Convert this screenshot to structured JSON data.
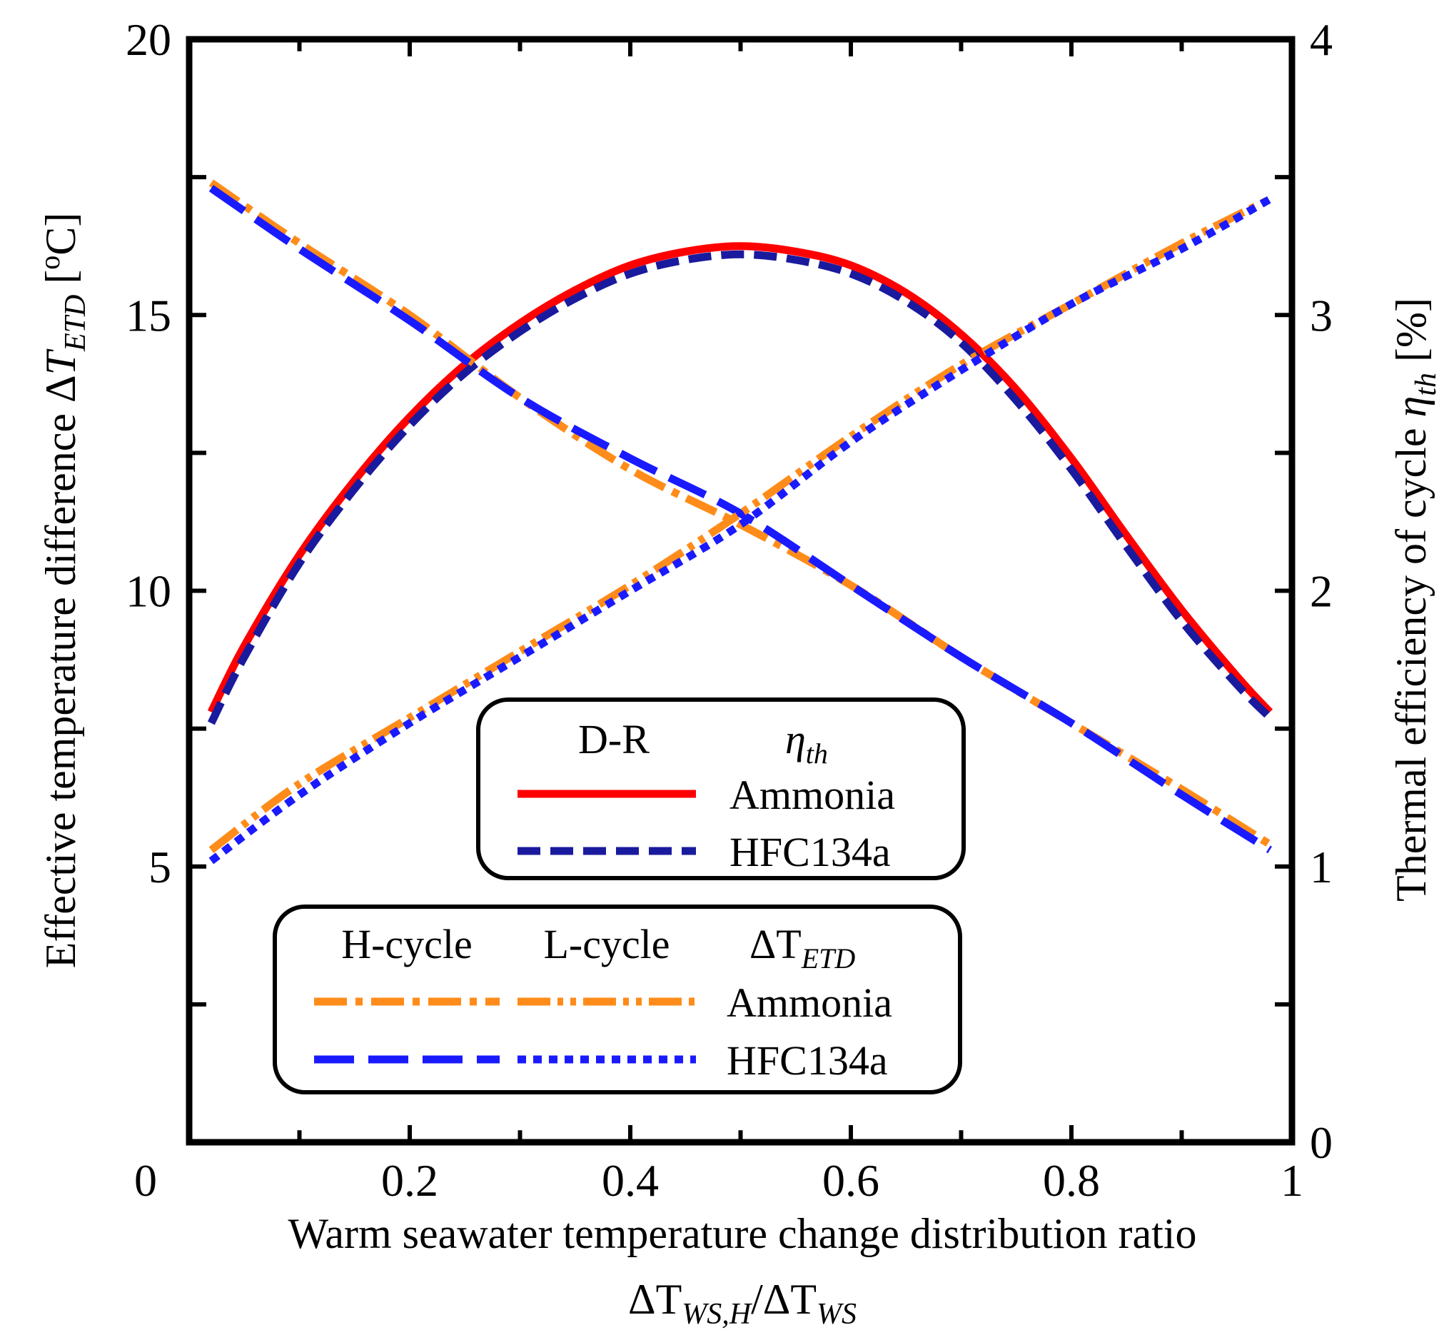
{
  "chart_data": {
    "type": "line",
    "xlabel": "Warm seawater temperature change distribution ratio",
    "xlabel_sub": {
      "prefix": "ΔT",
      "sub1": "WS,H",
      "slash": "/ΔT",
      "sub2": "WS"
    },
    "ylabel": {
      "text": "Effective temperature difference ",
      "delta": "Δ",
      "var": "T",
      "sub": "ETD",
      "bracket_open": " [",
      "sup": "o",
      "unit": "C]"
    },
    "y2label": {
      "text": "Thermal efficiency of cycle ",
      "var": "η",
      "sub": "th",
      "unit": " [%]"
    },
    "xlim": [
      0,
      1
    ],
    "ylim": [
      0,
      20
    ],
    "y2lim": [
      0,
      4
    ],
    "xticks": [
      0,
      0.2,
      0.4,
      0.6,
      0.8,
      1
    ],
    "xtick_labels": [
      "0",
      "0.2",
      "0.4",
      "0.6",
      "0.8",
      "1"
    ],
    "yticks": [
      5,
      10,
      15,
      20
    ],
    "ytick_labels": [
      "5",
      "10",
      "15",
      "20"
    ],
    "y2ticks": [
      0,
      1,
      2,
      3,
      4
    ],
    "y2tick_labels": [
      "0",
      "1",
      "2",
      "3",
      "4"
    ],
    "x0_label": "0",
    "colors": {
      "red": "#ff0000",
      "navy": "#1a1a9e",
      "orange": "#ff8c1a",
      "blue": "#1a1aff"
    },
    "series": [
      {
        "name": "eta_th Ammonia D-R",
        "axis": "y2",
        "color": "#ff0000",
        "dash": "solid",
        "x": [
          0.02,
          0.05,
          0.1,
          0.15,
          0.2,
          0.25,
          0.3,
          0.35,
          0.4,
          0.45,
          0.5,
          0.55,
          0.6,
          0.65,
          0.7,
          0.75,
          0.8,
          0.85,
          0.9,
          0.95,
          0.98
        ],
        "y": [
          1.56,
          1.8,
          2.13,
          2.4,
          2.63,
          2.82,
          2.97,
          3.09,
          3.18,
          3.23,
          3.25,
          3.23,
          3.18,
          3.08,
          2.93,
          2.73,
          2.48,
          2.2,
          1.93,
          1.69,
          1.56
        ]
      },
      {
        "name": "eta_th HFC134a D-R",
        "axis": "y2",
        "color": "#1a1a9e",
        "dash": "dashed",
        "x": [
          0.02,
          0.05,
          0.1,
          0.15,
          0.2,
          0.25,
          0.3,
          0.35,
          0.4,
          0.45,
          0.5,
          0.55,
          0.6,
          0.65,
          0.7,
          0.75,
          0.8,
          0.85,
          0.9,
          0.95,
          0.98
        ],
        "y": [
          1.52,
          1.76,
          2.1,
          2.37,
          2.6,
          2.79,
          2.94,
          3.06,
          3.15,
          3.2,
          3.22,
          3.2,
          3.15,
          3.05,
          2.9,
          2.69,
          2.44,
          2.16,
          1.89,
          1.66,
          1.54
        ]
      },
      {
        "name": "DT_ETD H-cycle Ammonia",
        "axis": "y",
        "color": "#ff8c1a",
        "dash": "dashdot",
        "x": [
          0.02,
          0.1,
          0.2,
          0.3,
          0.4,
          0.5,
          0.6,
          0.7,
          0.8,
          0.9,
          0.98
        ],
        "y": [
          17.4,
          16.3,
          15.0,
          13.5,
          12.2,
          11.2,
          10.1,
          8.8,
          7.6,
          6.4,
          5.4
        ]
      },
      {
        "name": "DT_ETD H-cycle HFC134a",
        "axis": "y",
        "color": "#1a1aff",
        "dash": "longdash",
        "x": [
          0.02,
          0.1,
          0.2,
          0.3,
          0.4,
          0.5,
          0.6,
          0.7,
          0.8,
          0.9,
          0.98
        ],
        "y": [
          17.3,
          16.2,
          14.9,
          13.5,
          12.4,
          11.4,
          10.1,
          8.8,
          7.6,
          6.3,
          5.3
        ]
      },
      {
        "name": "DT_ETD L-cycle Ammonia",
        "axis": "y",
        "color": "#ff8c1a",
        "dash": "dashdotdot",
        "x": [
          0.02,
          0.1,
          0.2,
          0.3,
          0.4,
          0.5,
          0.6,
          0.7,
          0.8,
          0.9,
          0.98
        ],
        "y": [
          5.3,
          6.5,
          7.7,
          8.9,
          10.1,
          11.4,
          12.8,
          14.1,
          15.2,
          16.3,
          17.1
        ]
      },
      {
        "name": "DT_ETD L-cycle HFC134a",
        "axis": "y",
        "color": "#1a1aff",
        "dash": "dotted",
        "x": [
          0.02,
          0.1,
          0.2,
          0.3,
          0.4,
          0.5,
          0.6,
          0.7,
          0.8,
          0.9,
          0.98
        ],
        "y": [
          5.1,
          6.3,
          7.6,
          8.8,
          10.0,
          11.2,
          12.7,
          14.0,
          15.2,
          16.2,
          17.1
        ]
      }
    ],
    "legend_dr": {
      "header": "D-R",
      "symbol": "η",
      "symbol_sub": "th",
      "entries": [
        "Ammonia",
        "HFC134a"
      ]
    },
    "legend_cycles": {
      "headers": [
        "H-cycle",
        "L-cycle"
      ],
      "symbol": "ΔT",
      "symbol_sub": "ETD",
      "entries": [
        "Ammonia",
        "HFC134a"
      ]
    }
  }
}
